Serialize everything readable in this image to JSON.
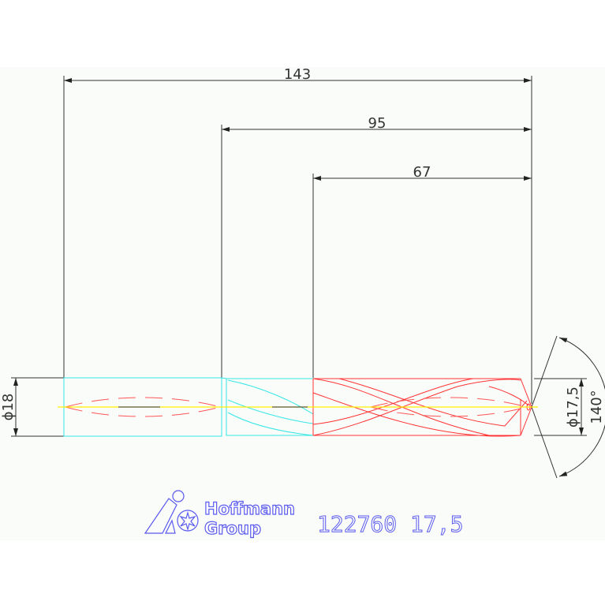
{
  "dimensions": {
    "overall_length": "143",
    "flute_shank_length": "95",
    "flute_length": "67",
    "shank_diameter": "ϕ18",
    "drill_diameter": "ϕ17,5",
    "point_angle": "140°"
  },
  "title_block": {
    "brand_line1": "Hoffmann",
    "brand_line2": "Group",
    "article": "122760 17,5"
  },
  "colors": {
    "dimension": "#333333",
    "shank": "#33e6e6",
    "body": "#ff3333",
    "centerline": "#ffee00",
    "logo": "#5a5aee"
  }
}
